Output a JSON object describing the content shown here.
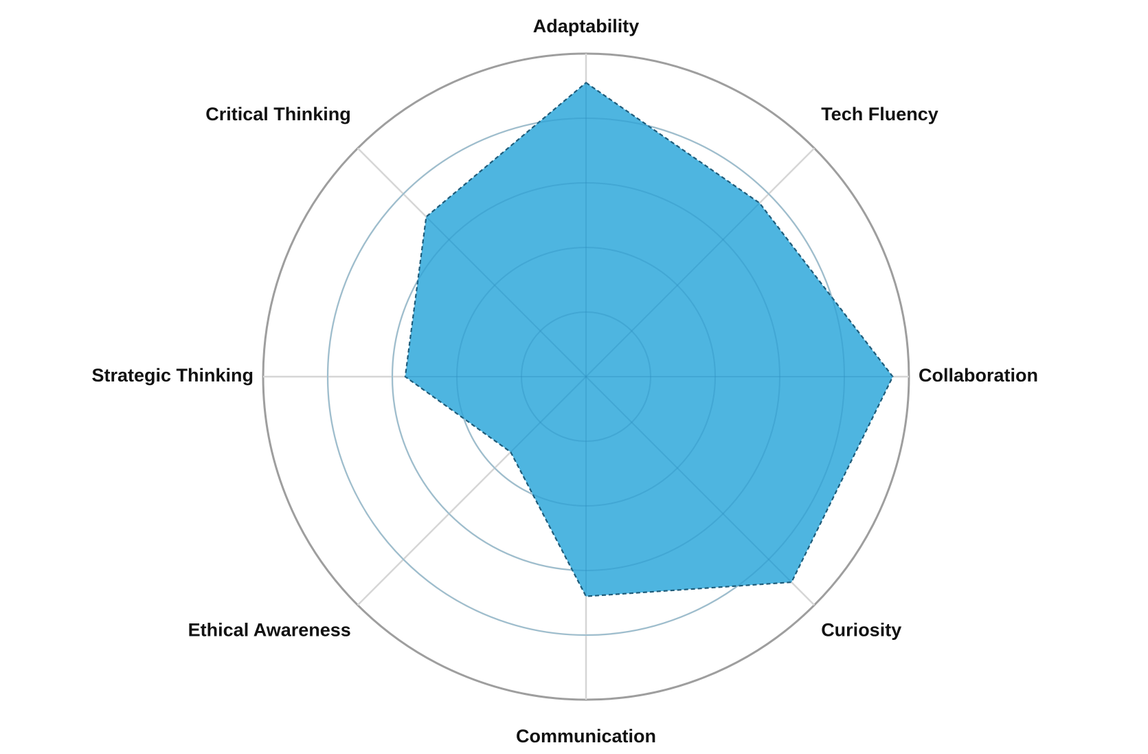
{
  "chart_data": {
    "type": "radar",
    "title": "",
    "categories": [
      "Adaptability",
      "Tech Fluency",
      "Collaboration",
      "Curiosity",
      "Communication",
      "Ethical Awareness",
      "Strategic Thinking",
      "Critical Thinking"
    ],
    "series": [
      {
        "values": [
          9.1,
          7.6,
          9.5,
          9.0,
          6.8,
          3.3,
          5.6,
          7.0
        ]
      }
    ],
    "rlim": [
      0,
      10
    ],
    "rings": [
      2,
      4,
      6,
      8,
      10
    ],
    "tick_labels_shown": false,
    "grid": true,
    "legend": "none",
    "colors": {
      "fill": "#48b3df",
      "outline": "#1f5c7a",
      "grid": "#d6d6d6",
      "outer_ring": "#9e9e9e",
      "label": "#111111"
    }
  }
}
